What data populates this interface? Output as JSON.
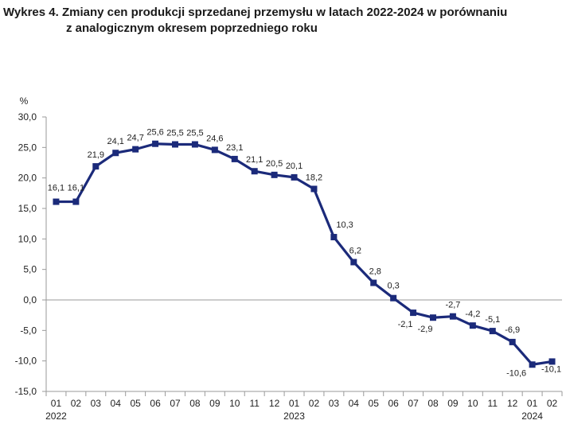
{
  "chart_data": {
    "type": "line",
    "title_line1": "Wykres 4. Zmiany cen produkcji sprzedanej przemysłu w latach 2022-2024 w porównaniu",
    "title_line2": "z analogicznym okresem poprzedniego roku",
    "ylabel": "%",
    "ylim": [
      -15,
      30
    ],
    "yticks": [
      "-15,0",
      "-10,0",
      "-5,0",
      "0,0",
      "5,0",
      "10,0",
      "15,0",
      "20,0",
      "25,0",
      "30,0"
    ],
    "ytick_values": [
      -15,
      -10,
      -5,
      0,
      5,
      10,
      15,
      20,
      25,
      30
    ],
    "categories": [
      "01",
      "02",
      "03",
      "04",
      "05",
      "06",
      "07",
      "08",
      "09",
      "10",
      "11",
      "12",
      "01",
      "02",
      "03",
      "04",
      "05",
      "06",
      "07",
      "08",
      "09",
      "10",
      "11",
      "12",
      "01",
      "02"
    ],
    "years": [
      {
        "label": "2022",
        "start_index": 0
      },
      {
        "label": "2023",
        "start_index": 12
      },
      {
        "label": "2024",
        "start_index": 24
      }
    ],
    "series": [
      {
        "name": "Zmiany cen produkcji sprzedanej przemysłu",
        "color": "#1b2a7a",
        "values": [
          16.1,
          16.1,
          21.9,
          24.1,
          24.7,
          25.6,
          25.5,
          25.5,
          24.6,
          23.1,
          21.1,
          20.5,
          20.1,
          18.2,
          10.3,
          6.2,
          2.8,
          0.3,
          -2.1,
          -2.9,
          -2.7,
          -4.2,
          -5.1,
          -6.9,
          -10.6,
          -10.1
        ],
        "labels": [
          "16,1",
          "16,1",
          "21,9",
          "24,1",
          "24,7",
          "25,6",
          "25,5",
          "25,5",
          "24,6",
          "23,1",
          "21,1",
          "20,5",
          "20,1",
          "18,2",
          "10,3",
          "6,2",
          "2,8",
          "0,3",
          "-2,1",
          "-2,9",
          "-2,7",
          "-4,2",
          "-5,1",
          "-6,9",
          "-10,6",
          "-10,1"
        ]
      }
    ],
    "grid": false
  }
}
